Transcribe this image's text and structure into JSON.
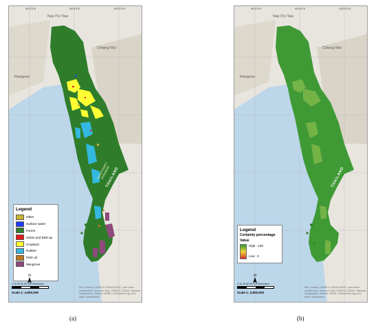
{
  "figure_a": {
    "caption": "(a)",
    "top_ticks": [
      "96°0'0\"E",
      "98°0'0\"E",
      "100°0'0\"E"
    ],
    "places": {
      "capital": "Nay Pyi Taw",
      "dist": "Chiang Mai",
      "city": "Rangoon"
    },
    "country_label": "THAILAND",
    "region_label": "TANINTHARYI MYANMAR",
    "legend": {
      "title": "Legend",
      "items": [
        {
          "label": "Other",
          "color": "#c9b43a"
        },
        {
          "label": "Surface water",
          "color": "#1e3cff"
        },
        {
          "label": "Forest",
          "color": "#2f7d2b"
        },
        {
          "label": "Urban and Built up",
          "color": "#e31a1c"
        },
        {
          "label": "Cropland",
          "color": "#ffff33"
        },
        {
          "label": "Rubber",
          "color": "#33b8e0"
        },
        {
          "label": "Palm oil",
          "color": "#b9781e"
        },
        {
          "label": "Mangrove",
          "color": "#8e4a7c"
        }
      ]
    },
    "scale": {
      "numbers": "0 15 30   60   90   120",
      "unit": "Kilometers",
      "text": "Scale 1: 4,500,000"
    },
    "north": "N",
    "attribution": "Esri, Garmin, GEBCO, NOAA NGDC, and other contributors. Sources: Esri, GEBCO, NOAA, National Geographic, Garmin, HERE, Geonames.org, and other contributors"
  },
  "figure_b": {
    "caption": "(b)",
    "top_ticks": [
      "96°0'0\"E",
      "98°0'0\"E",
      "100°0'0\"E"
    ],
    "places": {
      "capital": "Nay Pyi Taw",
      "dist": "Chiang Mai",
      "city": "Rangoon"
    },
    "country_label": "THAILAND",
    "legend": {
      "title": "Legend",
      "subtitle": "Certainty percentage",
      "value_label": "Value",
      "high": "High : 100",
      "low": "Low : 0",
      "colors": {
        "high": "#2f9e2f",
        "mid": "#f1d23a",
        "low": "#d2322c"
      }
    },
    "scale": {
      "numbers": "0 15 30   60   90   120",
      "unit": "Kilometers",
      "text": "Scale 1: 4,500,000"
    },
    "north": "N",
    "attribution": "Esri, Garmin, GEBCO, NOAA NGDC, and other contributors. Sources: Esri, GEBCO, NOAA, National Geographic, Garmin, HERE, Geonames.org, and other contributors"
  }
}
